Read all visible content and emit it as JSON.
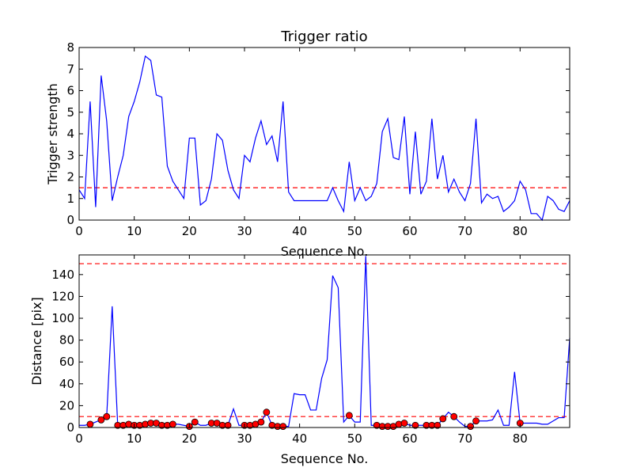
{
  "chart_data": [
    {
      "type": "line",
      "title": "Trigger ratio",
      "xlabel": "Sequence No.",
      "ylabel": "Trigger strength",
      "xlim": [
        0,
        89
      ],
      "ylim": [
        0,
        8
      ],
      "xticks": [
        0,
        10,
        20,
        30,
        40,
        50,
        60,
        70,
        80
      ],
      "yticks": [
        0,
        1,
        2,
        3,
        4,
        5,
        6,
        7,
        8
      ],
      "colors": {
        "line": "#0000ff",
        "threshold": "#ff0000"
      },
      "series": [
        {
          "x": [
            0,
            1,
            2,
            3,
            4,
            5,
            6,
            7,
            8,
            9,
            10,
            11,
            12,
            13,
            14,
            15,
            16,
            17,
            18,
            19,
            20,
            21,
            22,
            23,
            24,
            25,
            26,
            27,
            28,
            29,
            30,
            31,
            32,
            33,
            34,
            35,
            36,
            37,
            38,
            39,
            40,
            41,
            42,
            43,
            44,
            45,
            46,
            47,
            48,
            49,
            50,
            51,
            52,
            53,
            54,
            55,
            56,
            57,
            58,
            59,
            60,
            61,
            62,
            63,
            64,
            65,
            66,
            67,
            68,
            69,
            70,
            71,
            72,
            73,
            74,
            75,
            76,
            77,
            78,
            79,
            80,
            81,
            82,
            83,
            84,
            85,
            86,
            87,
            88,
            89
          ],
          "values": [
            1.4,
            1.0,
            5.5,
            0.6,
            6.7,
            4.6,
            0.9,
            2.0,
            3.0,
            4.8,
            5.5,
            6.4,
            7.6,
            7.4,
            5.8,
            5.7,
            2.5,
            1.8,
            1.4,
            1.0,
            3.8,
            3.8,
            0.7,
            0.9,
            1.9,
            4.0,
            3.7,
            2.3,
            1.4,
            1.0,
            3.0,
            2.7,
            3.8,
            4.6,
            3.5,
            3.9,
            2.7,
            5.5,
            1.3,
            0.9,
            0.9,
            0.9,
            0.9,
            0.9,
            0.9,
            0.9,
            1.5,
            0.9,
            0.4,
            2.7,
            0.9,
            1.5,
            0.9,
            1.1,
            1.7,
            4.1,
            4.7,
            2.9,
            2.8,
            4.8,
            1.2,
            4.1,
            1.2,
            1.8,
            4.7,
            1.9,
            3.0,
            1.3,
            1.9,
            1.3,
            0.9,
            1.7,
            4.7,
            0.8,
            1.2,
            1.0,
            1.1,
            0.4,
            0.6,
            0.9,
            1.8,
            1.4,
            0.3,
            0.3,
            0.0,
            1.1,
            0.9,
            0.5,
            0.4,
            0.9
          ]
        }
      ],
      "threshold": 1.5
    },
    {
      "type": "line",
      "title": "",
      "xlabel": "Sequence No.",
      "ylabel": "Distance [pix]",
      "xlim": [
        0,
        89
      ],
      "ylim": [
        0,
        158
      ],
      "xticks": [
        0,
        10,
        20,
        30,
        40,
        50,
        60,
        70,
        80
      ],
      "yticks": [
        0,
        20,
        40,
        60,
        80,
        100,
        120,
        140
      ],
      "colors": {
        "line": "#0000ff",
        "threshold": "#ff0000",
        "marker": "#ff0000"
      },
      "series": [
        {
          "x": [
            0,
            1,
            2,
            3,
            4,
            5,
            6,
            7,
            8,
            9,
            10,
            11,
            12,
            13,
            14,
            15,
            16,
            17,
            18,
            19,
            20,
            21,
            22,
            23,
            24,
            25,
            26,
            27,
            28,
            29,
            30,
            31,
            32,
            33,
            34,
            35,
            36,
            37,
            38,
            39,
            40,
            41,
            42,
            43,
            44,
            45,
            46,
            47,
            48,
            49,
            50,
            51,
            52,
            53,
            54,
            55,
            56,
            57,
            58,
            59,
            60,
            61,
            62,
            63,
            64,
            65,
            66,
            67,
            68,
            69,
            70,
            71,
            72,
            73,
            74,
            75,
            76,
            77,
            78,
            79,
            80,
            81,
            82,
            83,
            84,
            85,
            86,
            87,
            88,
            89
          ],
          "values": [
            2,
            2,
            3,
            5,
            7,
            10,
            111,
            2,
            2,
            3,
            2,
            2,
            3,
            4,
            4,
            2,
            2,
            3,
            3,
            2,
            1,
            5,
            2,
            2,
            4,
            4,
            2,
            2,
            17,
            2,
            2,
            2,
            3,
            5,
            14,
            2,
            1,
            1,
            1,
            31,
            30,
            30,
            16,
            16,
            45,
            62,
            139,
            128,
            5,
            11,
            5,
            5,
            157,
            2,
            2,
            1,
            1,
            1,
            3,
            4,
            2,
            2,
            2,
            2,
            2,
            2,
            8,
            14,
            10,
            5,
            1,
            1,
            6,
            6,
            6,
            7,
            16,
            2,
            2,
            51,
            4,
            4,
            4,
            4,
            3,
            3,
            6,
            9,
            9,
            82
          ]
        }
      ],
      "markers": {
        "x": [
          2,
          4,
          5,
          7,
          8,
          9,
          10,
          11,
          12,
          13,
          14,
          15,
          16,
          17,
          20,
          21,
          24,
          25,
          26,
          27,
          30,
          31,
          32,
          33,
          34,
          35,
          36,
          37,
          49,
          54,
          55,
          56,
          57,
          58,
          59,
          61,
          63,
          64,
          65,
          66,
          68,
          71,
          72,
          80
        ],
        "values": [
          3,
          7,
          10,
          2,
          2,
          3,
          2,
          2,
          3,
          4,
          4,
          2,
          2,
          3,
          1,
          5,
          4,
          4,
          2,
          2,
          2,
          2,
          3,
          5,
          14,
          2,
          1,
          1,
          11,
          2,
          1,
          1,
          1,
          3,
          4,
          2,
          2,
          2,
          2,
          8,
          10,
          1,
          6,
          4
        ]
      },
      "thresholds": [
        10,
        150
      ]
    }
  ]
}
